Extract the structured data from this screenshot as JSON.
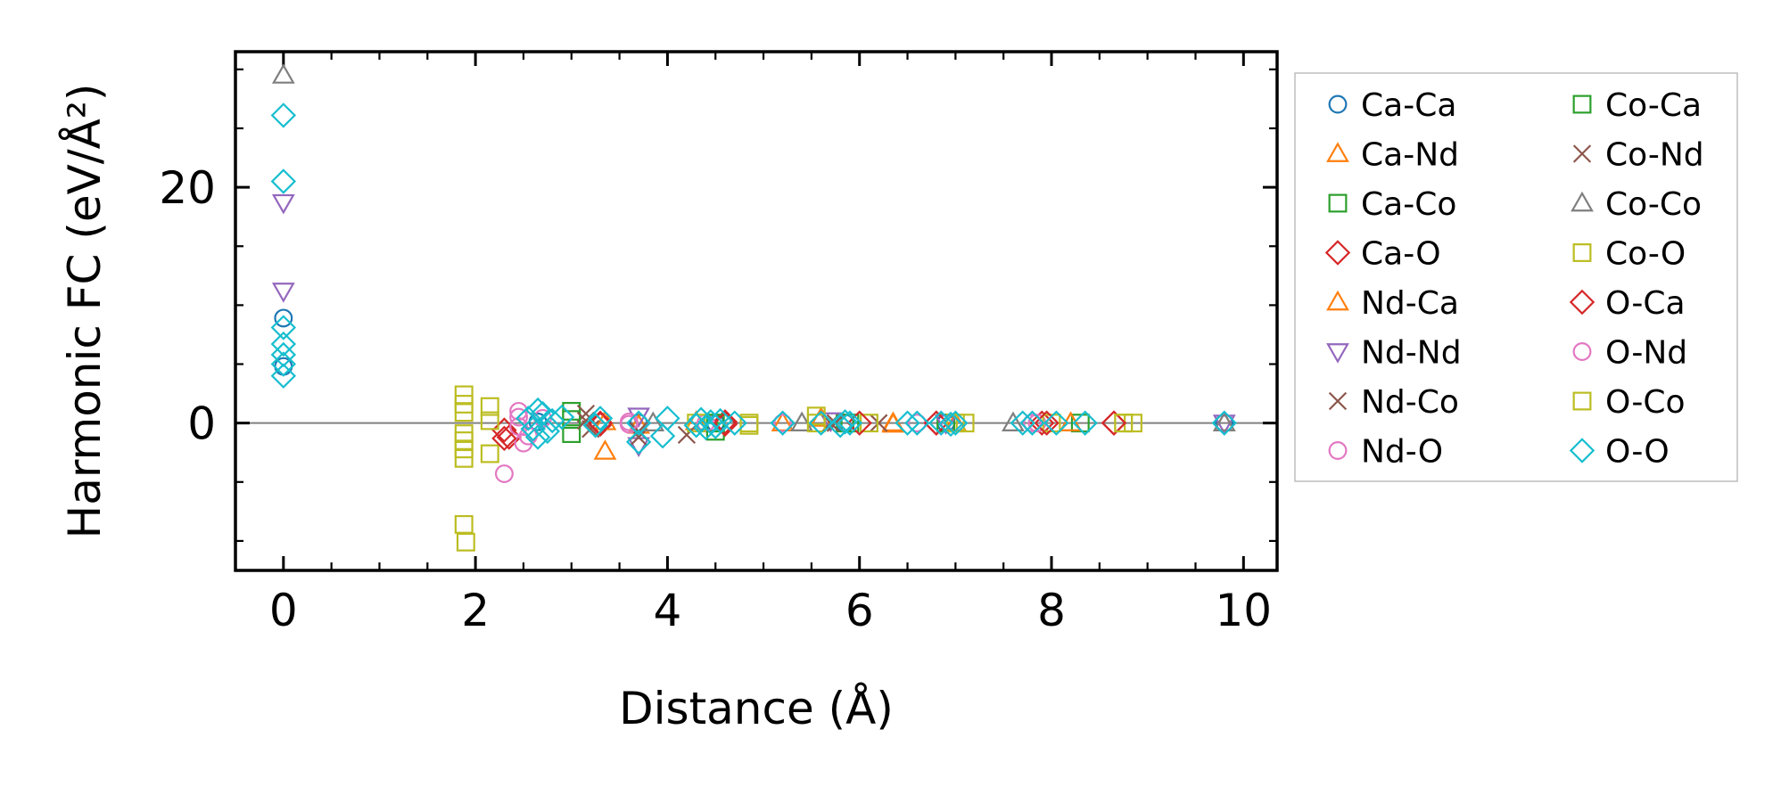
{
  "chart_data": {
    "type": "scatter",
    "title": "",
    "xlabel": "Distance (Å)",
    "ylabel": "Harmonic FC (eV/Å²)",
    "xlim": [
      -0.5,
      10.35
    ],
    "ylim": [
      -12.5,
      31.5
    ],
    "xticks": [
      0,
      2,
      4,
      6,
      8,
      10
    ],
    "yticks": [
      0,
      20
    ],
    "xtick_labels": [
      "0",
      "2",
      "4",
      "6",
      "8",
      "10"
    ],
    "ytick_labels": [
      "0",
      "20"
    ],
    "zero_line": true,
    "grid": false,
    "legend_position": "outside-right",
    "series": [
      {
        "name": "Ca-Ca",
        "marker": "circle",
        "color": "#1f77b4",
        "points": [
          [
            0,
            8.9
          ],
          [
            0,
            4.8
          ],
          [
            2.65,
            0.1
          ],
          [
            3.7,
            0.0
          ],
          [
            4.5,
            0.0
          ],
          [
            5.85,
            0.0
          ],
          [
            6.9,
            0.0
          ],
          [
            7.8,
            0.0
          ],
          [
            9.8,
            0.0
          ]
        ]
      },
      {
        "name": "Ca-Nd",
        "marker": "triangle-up",
        "color": "#ff7f0e",
        "points": [
          [
            3.35,
            -2.4
          ],
          [
            3.7,
            -0.2
          ],
          [
            4.3,
            0.1
          ],
          [
            5.2,
            0.0
          ],
          [
            6.35,
            -0.1
          ],
          [
            7.0,
            0.0
          ],
          [
            8.2,
            0.0
          ],
          [
            9.8,
            0.0
          ]
        ]
      },
      {
        "name": "Ca-Co",
        "marker": "square",
        "color": "#2ca02c",
        "points": [
          [
            3.0,
            1.0
          ],
          [
            3.0,
            -0.9
          ],
          [
            4.5,
            -0.7
          ],
          [
            5.85,
            0.0
          ],
          [
            6.9,
            0.0
          ],
          [
            8.3,
            0.0
          ]
        ]
      },
      {
        "name": "Ca-O",
        "marker": "diamond",
        "color": "#d62728",
        "points": [
          [
            2.3,
            -0.6
          ],
          [
            2.35,
            -1.2
          ],
          [
            3.3,
            -0.1
          ],
          [
            4.6,
            0.1
          ],
          [
            6.8,
            0.0
          ],
          [
            7.9,
            0.0
          ],
          [
            8.65,
            0.0
          ]
        ]
      },
      {
        "name": "Nd-Ca",
        "marker": "triangle-up",
        "color": "#ff7f0e",
        "points": [
          [
            3.35,
            0.1
          ],
          [
            5.6,
            0.4
          ],
          [
            6.35,
            0.0
          ],
          [
            8.2,
            0.0
          ]
        ]
      },
      {
        "name": "Nd-Nd",
        "marker": "triangle-down",
        "color": "#9467bd",
        "points": [
          [
            0,
            18.7
          ],
          [
            0,
            11.2
          ],
          [
            3.7,
            0.6
          ],
          [
            3.7,
            -1.9
          ],
          [
            5.7,
            0.2
          ],
          [
            6.9,
            0.0
          ],
          [
            9.8,
            0.0
          ]
        ]
      },
      {
        "name": "Nd-Co",
        "marker": "x",
        "color": "#8c564b",
        "points": [
          [
            3.15,
            0.8
          ],
          [
            3.2,
            -0.5
          ],
          [
            3.7,
            -1.2
          ],
          [
            4.2,
            -1.0
          ],
          [
            5.7,
            0.0
          ],
          [
            6.2,
            0.0
          ]
        ]
      },
      {
        "name": "Nd-O",
        "marker": "circle",
        "color": "#e377c2",
        "points": [
          [
            2.3,
            -4.3
          ],
          [
            2.45,
            1.0
          ],
          [
            2.45,
            -0.3
          ],
          [
            2.5,
            -1.7
          ],
          [
            2.7,
            0.4
          ],
          [
            3.6,
            -0.1
          ],
          [
            4.4,
            0.0
          ],
          [
            5.2,
            0.0
          ],
          [
            6.6,
            0.0
          ],
          [
            7.85,
            0.0
          ]
        ]
      },
      {
        "name": "Co-Ca",
        "marker": "square",
        "color": "#2ca02c",
        "points": [
          [
            3.0,
            0.3
          ],
          [
            4.5,
            0.0
          ],
          [
            5.9,
            0.0
          ]
        ]
      },
      {
        "name": "Co-Nd",
        "marker": "x",
        "color": "#8c564b",
        "points": [
          [
            3.15,
            0.2
          ],
          [
            3.7,
            -0.7
          ],
          [
            5.75,
            0.0
          ]
        ]
      },
      {
        "name": "Co-Co",
        "marker": "triangle-up",
        "color": "#7f7f7f",
        "points": [
          [
            0,
            29.5
          ],
          [
            3.85,
            0.0
          ],
          [
            5.4,
            0.0
          ],
          [
            7.6,
            0.0
          ],
          [
            9.8,
            0.0
          ]
        ]
      },
      {
        "name": "Co-O",
        "marker": "square",
        "color": "#bcbd22",
        "points": [
          [
            1.88,
            2.4
          ],
          [
            1.88,
            0.9
          ],
          [
            1.88,
            -0.9
          ],
          [
            1.88,
            -2.2
          ],
          [
            1.88,
            -3.0
          ],
          [
            1.88,
            -8.6
          ],
          [
            1.9,
            -10.1
          ],
          [
            2.15,
            1.4
          ],
          [
            2.15,
            -2.6
          ],
          [
            4.3,
            0.0
          ],
          [
            4.85,
            0.0
          ],
          [
            5.55,
            0.6
          ],
          [
            6.1,
            0.0
          ],
          [
            7.1,
            0.0
          ],
          [
            8.0,
            0.0
          ],
          [
            8.75,
            0.0
          ],
          [
            8.85,
            0.0
          ]
        ]
      },
      {
        "name": "O-Ca",
        "marker": "diamond",
        "color": "#d62728",
        "points": [
          [
            2.3,
            -1.3
          ],
          [
            3.3,
            0.0
          ],
          [
            4.6,
            -0.1
          ],
          [
            6.0,
            0.0
          ],
          [
            6.8,
            0.0
          ],
          [
            7.95,
            0.0
          ],
          [
            8.65,
            0.0
          ]
        ]
      },
      {
        "name": "O-Nd",
        "marker": "circle",
        "color": "#e377c2",
        "points": [
          [
            2.45,
            0.5
          ],
          [
            2.55,
            -1.1
          ],
          [
            3.6,
            0.1
          ],
          [
            5.2,
            0.0
          ],
          [
            7.8,
            0.0
          ]
        ]
      },
      {
        "name": "O-Co",
        "marker": "square",
        "color": "#bcbd22",
        "points": [
          [
            1.88,
            1.6
          ],
          [
            1.88,
            -1.5
          ],
          [
            2.15,
            0.2
          ],
          [
            4.85,
            -0.2
          ],
          [
            5.55,
            0.0
          ],
          [
            7.0,
            0.0
          ],
          [
            8.75,
            0.0
          ]
        ]
      },
      {
        "name": "O-O",
        "marker": "diamond",
        "color": "#17becf",
        "points": [
          [
            0,
            26.1
          ],
          [
            0,
            20.5
          ],
          [
            0,
            8.1
          ],
          [
            0,
            6.7
          ],
          [
            0,
            5.8
          ],
          [
            0,
            5.0
          ],
          [
            0,
            4.0
          ],
          [
            2.55,
            0.4
          ],
          [
            2.6,
            -0.5
          ],
          [
            2.65,
            1.1
          ],
          [
            2.65,
            -1.2
          ],
          [
            2.7,
            0.8
          ],
          [
            2.75,
            -0.7
          ],
          [
            2.8,
            0.2
          ],
          [
            2.9,
            0.5
          ],
          [
            3.25,
            -0.2
          ],
          [
            3.3,
            0.4
          ],
          [
            3.7,
            0.0
          ],
          [
            3.7,
            -1.6
          ],
          [
            3.95,
            -1.1
          ],
          [
            4.0,
            0.4
          ],
          [
            4.3,
            -0.2
          ],
          [
            4.35,
            0.3
          ],
          [
            4.4,
            -0.4
          ],
          [
            4.45,
            0.1
          ],
          [
            4.5,
            -0.3
          ],
          [
            4.55,
            0.2
          ],
          [
            4.7,
            0.0
          ],
          [
            5.2,
            0.0
          ],
          [
            5.6,
            0.0
          ],
          [
            5.8,
            -0.2
          ],
          [
            5.85,
            0.1
          ],
          [
            5.9,
            0.0
          ],
          [
            6.5,
            0.0
          ],
          [
            6.6,
            0.0
          ],
          [
            6.85,
            0.0
          ],
          [
            6.95,
            -0.1
          ],
          [
            7.0,
            0.0
          ],
          [
            7.7,
            0.0
          ],
          [
            7.8,
            0.0
          ],
          [
            8.05,
            0.0
          ],
          [
            8.35,
            0.0
          ],
          [
            9.8,
            0.0
          ]
        ]
      }
    ]
  }
}
